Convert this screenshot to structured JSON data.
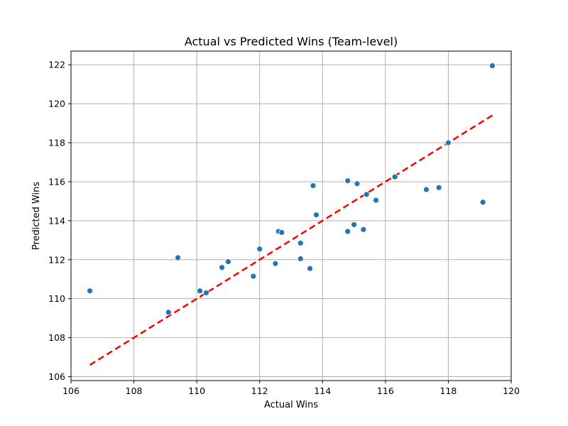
{
  "chart_data": {
    "type": "scatter",
    "title": "Actual vs Predicted Wins (Team-level)",
    "xlabel": "Actual Wins",
    "ylabel": "Predicted Wins",
    "xlim": [
      106,
      120
    ],
    "ylim": [
      105.8,
      122.7
    ],
    "xticks": [
      "106",
      "108",
      "110",
      "112",
      "114",
      "116",
      "118",
      "120"
    ],
    "yticks": [
      "106",
      "108",
      "110",
      "112",
      "114",
      "116",
      "118",
      "120",
      "122"
    ],
    "grid": true,
    "colors": {
      "points": "#1f77b4",
      "fit_line": "#ff0000"
    },
    "points": [
      {
        "x": 106.6,
        "y": 110.4
      },
      {
        "x": 109.1,
        "y": 109.3
      },
      {
        "x": 109.4,
        "y": 112.1
      },
      {
        "x": 110.1,
        "y": 110.4
      },
      {
        "x": 110.3,
        "y": 110.3
      },
      {
        "x": 110.8,
        "y": 111.6
      },
      {
        "x": 111.0,
        "y": 111.9
      },
      {
        "x": 111.8,
        "y": 111.15
      },
      {
        "x": 112.0,
        "y": 112.55
      },
      {
        "x": 112.5,
        "y": 111.8
      },
      {
        "x": 112.6,
        "y": 113.45
      },
      {
        "x": 112.7,
        "y": 113.4
      },
      {
        "x": 113.3,
        "y": 112.85
      },
      {
        "x": 113.3,
        "y": 112.05
      },
      {
        "x": 113.6,
        "y": 111.55
      },
      {
        "x": 113.7,
        "y": 115.8
      },
      {
        "x": 113.8,
        "y": 114.3
      },
      {
        "x": 114.8,
        "y": 116.05
      },
      {
        "x": 114.8,
        "y": 113.45
      },
      {
        "x": 115.0,
        "y": 113.8
      },
      {
        "x": 115.1,
        "y": 115.9
      },
      {
        "x": 115.3,
        "y": 113.55
      },
      {
        "x": 115.4,
        "y": 115.35
      },
      {
        "x": 115.7,
        "y": 115.05
      },
      {
        "x": 116.3,
        "y": 116.25
      },
      {
        "x": 117.3,
        "y": 115.6
      },
      {
        "x": 117.7,
        "y": 115.7
      },
      {
        "x": 118.0,
        "y": 118.0
      },
      {
        "x": 119.1,
        "y": 114.95
      },
      {
        "x": 119.4,
        "y": 121.95
      }
    ],
    "reference_line": {
      "x": [
        106.6,
        119.4
      ],
      "y": [
        106.6,
        119.4
      ]
    }
  }
}
